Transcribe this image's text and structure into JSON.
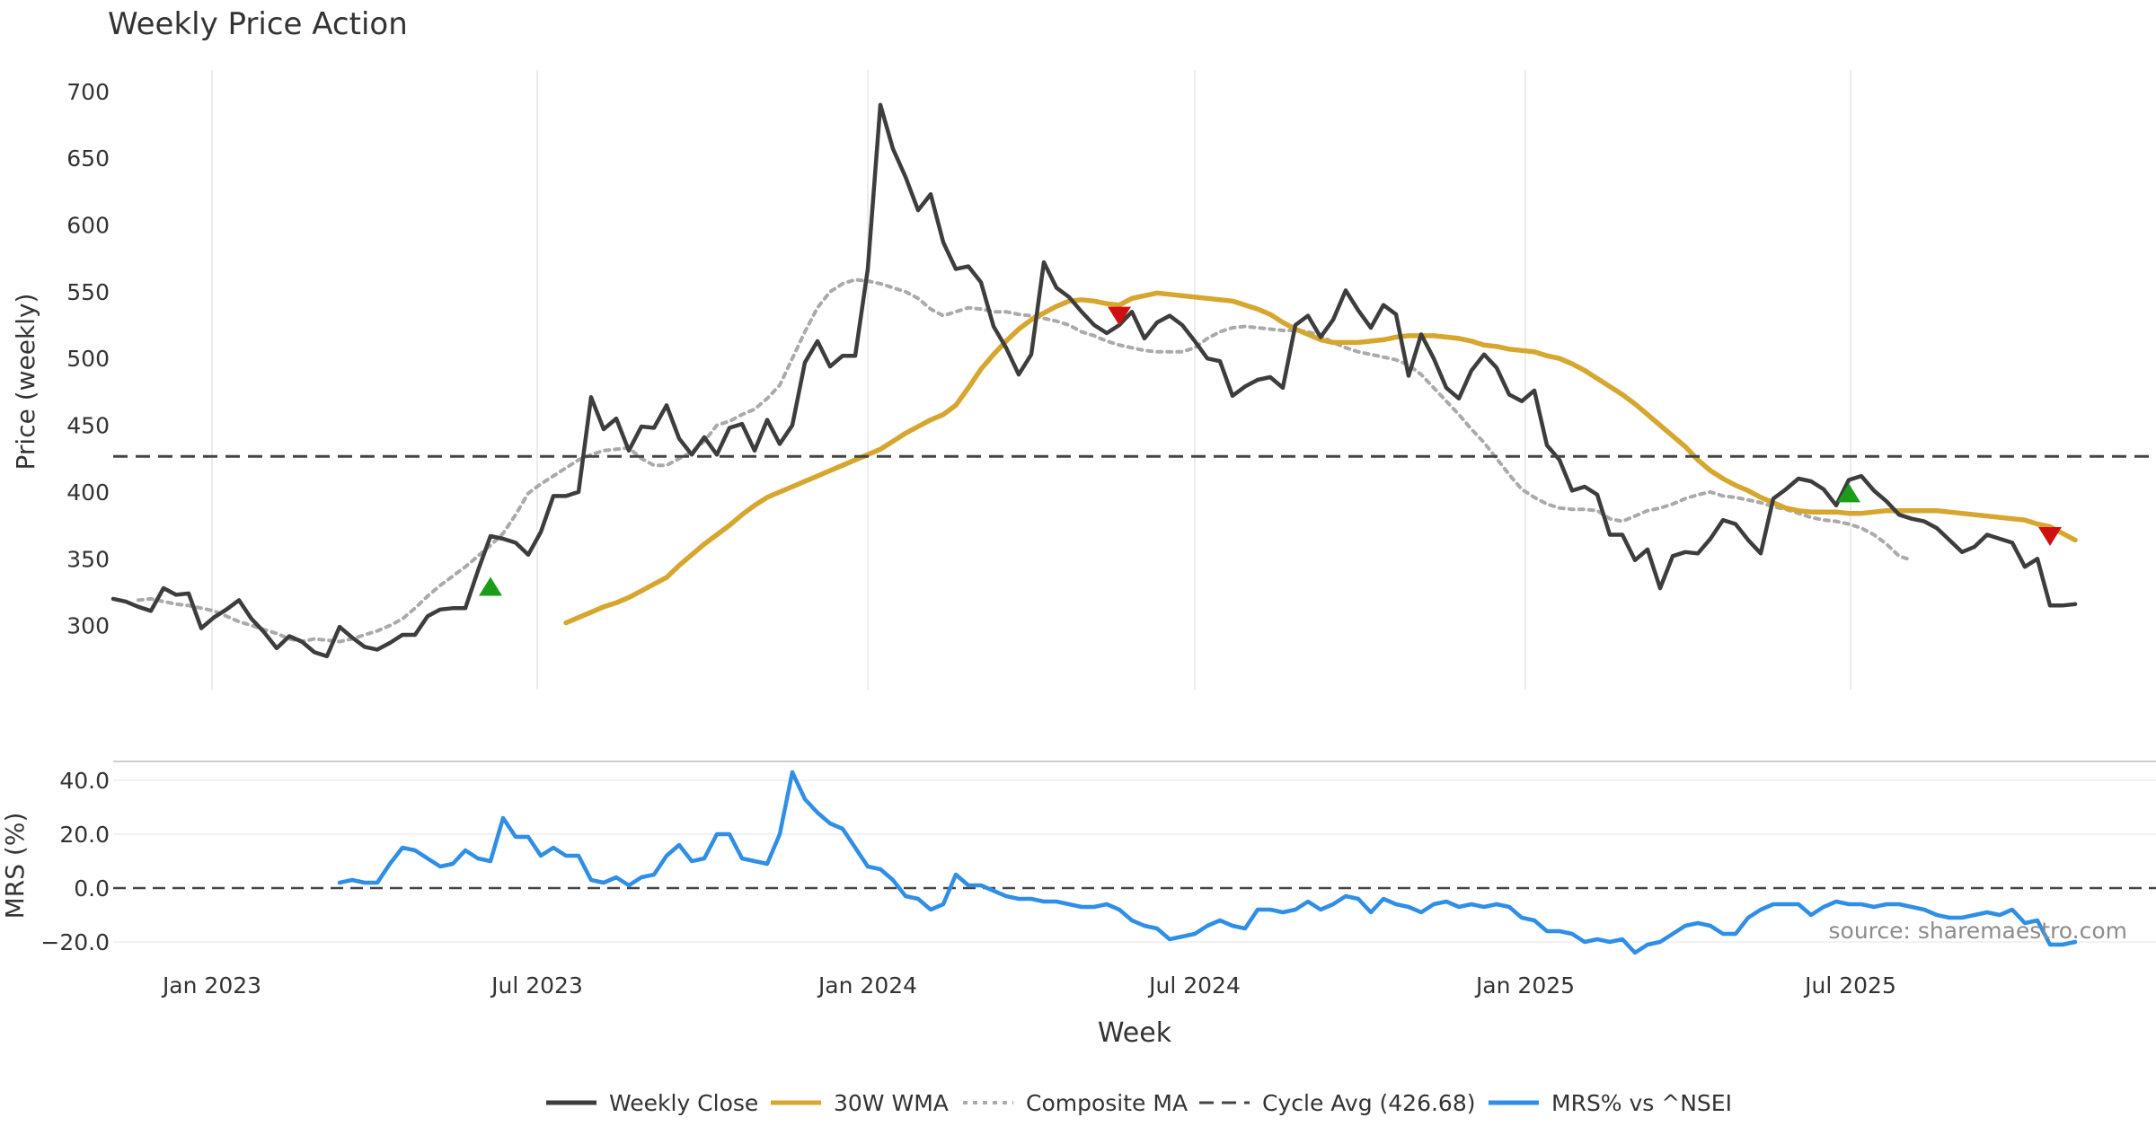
{
  "colors": {
    "close": "#3d3d3d",
    "wma": "#d6a62e",
    "composite": "#aaaaaa",
    "cycle": "#444444",
    "mrs": "#2f8ee5",
    "buy": "#1a9e1a",
    "sell": "#d01010",
    "grid": "#e6e6e6"
  },
  "chart_data": [
    {
      "type": "line",
      "title": "Weekly Price Action",
      "ylabel": "Price (weekly)",
      "xlabel": "Week",
      "ylim": [
        252,
        716
      ],
      "yticks": [
        300,
        350,
        400,
        450,
        500,
        550,
        600,
        650,
        700
      ],
      "x_start": "2022-11-07",
      "x_step_weeks": 1,
      "x_month_grid": [
        "2023-01-01",
        "2023-07-01",
        "2024-01-01",
        "2024-07-01",
        "2025-01-01",
        "2025-07-01"
      ],
      "series": [
        {
          "name": "Weekly Close",
          "values": [
            320,
            318,
            314,
            311,
            328,
            323,
            324,
            298,
            306,
            312,
            319,
            305,
            295,
            283,
            292,
            288,
            280,
            277,
            299,
            291,
            284,
            282,
            287,
            293,
            293,
            307,
            312,
            313,
            313,
            341,
            367,
            365,
            362,
            353,
            370,
            397,
            397,
            400,
            471,
            447,
            455,
            431,
            449,
            448,
            465,
            440,
            428,
            441,
            428,
            448,
            451,
            431,
            454,
            436,
            450,
            497,
            513,
            494,
            502,
            502,
            567,
            690,
            657,
            636,
            611,
            623,
            587,
            567,
            569,
            557,
            524,
            508,
            488,
            503,
            572,
            553,
            546,
            535,
            525,
            519,
            525,
            535,
            515,
            527,
            532,
            525,
            513,
            500,
            498,
            472,
            479,
            484,
            486,
            478,
            525,
            532,
            516,
            529,
            551,
            536,
            523,
            540,
            533,
            487,
            518,
            500,
            478,
            470,
            491,
            503,
            493,
            473,
            468,
            476,
            435,
            424,
            401,
            404,
            398,
            368,
            368,
            349,
            357,
            328,
            352,
            355,
            354,
            365,
            379,
            376,
            364,
            354,
            395,
            402,
            410,
            408,
            402,
            390,
            409,
            412,
            401,
            393,
            383,
            380,
            378,
            373,
            364,
            355,
            359,
            368,
            365,
            362,
            344,
            350,
            315,
            315,
            316
          ]
        },
        {
          "name": "30W WMA",
          "values": [
            302,
            306,
            310,
            314,
            317,
            321,
            326,
            331,
            336,
            345,
            353,
            361,
            368,
            375,
            383,
            390,
            396,
            400,
            404,
            408,
            412,
            416,
            420,
            424,
            428,
            432,
            438,
            444,
            449,
            454,
            458,
            465,
            478,
            492,
            503,
            513,
            522,
            529,
            534,
            539,
            543,
            544,
            543,
            541,
            540,
            545,
            547,
            549,
            548,
            547,
            546,
            545,
            544,
            543,
            540,
            537,
            533,
            527,
            522,
            518,
            514,
            512,
            512,
            512,
            513,
            514,
            516,
            517,
            517,
            517,
            516,
            515,
            513,
            510,
            509,
            507,
            506,
            505,
            502,
            500,
            496,
            491,
            485,
            479,
            473,
            466,
            458,
            450,
            442,
            434,
            424,
            416,
            410,
            405,
            401,
            396,
            392,
            388,
            386,
            385,
            385,
            385,
            384,
            384,
            385,
            386,
            386,
            386,
            386,
            386,
            385,
            384,
            383,
            382,
            381,
            380,
            379,
            376,
            374,
            369,
            364
          ]
        },
        {
          "name": "Composite MA",
          "values": [
            319,
            320,
            318,
            316,
            315,
            313,
            311,
            307,
            303,
            300,
            297,
            294,
            290,
            288,
            290,
            289,
            288,
            290,
            293,
            296,
            300,
            305,
            313,
            322,
            330,
            337,
            344,
            352,
            360,
            369,
            383,
            399,
            406,
            412,
            418,
            424,
            428,
            431,
            432,
            433,
            425,
            420,
            420,
            425,
            430,
            438,
            450,
            453,
            458,
            462,
            470,
            480,
            500,
            520,
            538,
            550,
            556,
            559,
            558,
            556,
            553,
            550,
            545,
            537,
            532,
            535,
            538,
            537,
            535,
            535,
            533,
            532,
            530,
            528,
            525,
            520,
            517,
            513,
            510,
            508,
            506,
            505,
            505,
            505,
            508,
            515,
            520,
            523,
            524,
            523,
            522,
            521,
            521,
            520,
            517,
            512,
            508,
            505,
            503,
            501,
            499,
            495,
            488,
            478,
            468,
            458,
            447,
            437,
            425,
            413,
            402,
            396,
            391,
            388,
            387,
            387,
            386,
            380,
            378,
            382,
            386,
            388,
            391,
            395,
            398,
            400,
            397,
            396,
            394,
            392,
            389,
            387,
            384,
            381,
            379,
            378,
            376,
            373,
            368,
            361,
            352,
            349
          ]
        },
        {
          "name": "Cycle Avg (426.68)",
          "values": [
            426.68
          ]
        }
      ],
      "signals_buy": [
        {
          "week": 30,
          "price": 329
        },
        {
          "week": 138,
          "price": 399
        }
      ],
      "signals_sell": [
        {
          "week": 80,
          "price": 532
        },
        {
          "week": 154,
          "price": 367
        }
      ]
    },
    {
      "type": "line",
      "ylabel": "MRS (%)",
      "ylim": [
        -27,
        47
      ],
      "yticks": [
        -20,
        0,
        20,
        40
      ],
      "ytick_labels": [
        "−20.0",
        "0.0",
        "20.0",
        "40.0"
      ],
      "zero_line": 0,
      "series": [
        {
          "name": "MRS% vs ^NSEI",
          "values": [
            2,
            3,
            2,
            2,
            9,
            15,
            14,
            11,
            8,
            9,
            14,
            11,
            10,
            26,
            19,
            19,
            12,
            15,
            12,
            12,
            3,
            2,
            4,
            1,
            4,
            5,
            12,
            16,
            10,
            11,
            20,
            20,
            11,
            10,
            9,
            20,
            43,
            33,
            28,
            24,
            22,
            15,
            8,
            7,
            3,
            -3,
            -4,
            -8,
            -6,
            5,
            1,
            1,
            -1,
            -3,
            -4,
            -4,
            -5,
            -5,
            -6,
            -7,
            -7,
            -6,
            -8,
            -12,
            -14,
            -15,
            -19,
            -18,
            -17,
            -14,
            -12,
            -14,
            -15,
            -8,
            -8,
            -9,
            -8,
            -5,
            -8,
            -6,
            -3,
            -4,
            -9,
            -4,
            -6,
            -7,
            -9,
            -6,
            -5,
            -7,
            -6,
            -7,
            -6,
            -7,
            -11,
            -12,
            -16,
            -16,
            -17,
            -20,
            -19,
            -20,
            -19,
            -24,
            -21,
            -20,
            -17,
            -14,
            -13,
            -14,
            -17,
            -17,
            -11,
            -8,
            -6,
            -6,
            -6,
            -10,
            -7,
            -5,
            -6,
            -6,
            -7,
            -6,
            -6,
            -7,
            -8,
            -10,
            -11,
            -11,
            -10,
            -9,
            -10,
            -8,
            -13,
            -12,
            -21,
            -21,
            -20
          ]
        }
      ],
      "x_tick_labels": [
        "Jan 2023",
        "Jul 2023",
        "Jan 2024",
        "Jul 2024",
        "Jan 2025",
        "Jul 2025"
      ]
    }
  ],
  "legend": [
    {
      "name": "Weekly Close",
      "style": "solid",
      "color": "#3d3d3d"
    },
    {
      "name": "30W WMA",
      "style": "solid",
      "color": "#d6a62e"
    },
    {
      "name": "Composite MA",
      "style": "dotted",
      "color": "#aaaaaa"
    },
    {
      "name": "Cycle Avg (426.68)",
      "style": "dashed",
      "color": "#444444"
    },
    {
      "name": "MRS% vs ^NSEI",
      "style": "solid",
      "color": "#2f8ee5"
    }
  ],
  "watermark": "source: sharemaestro.com"
}
